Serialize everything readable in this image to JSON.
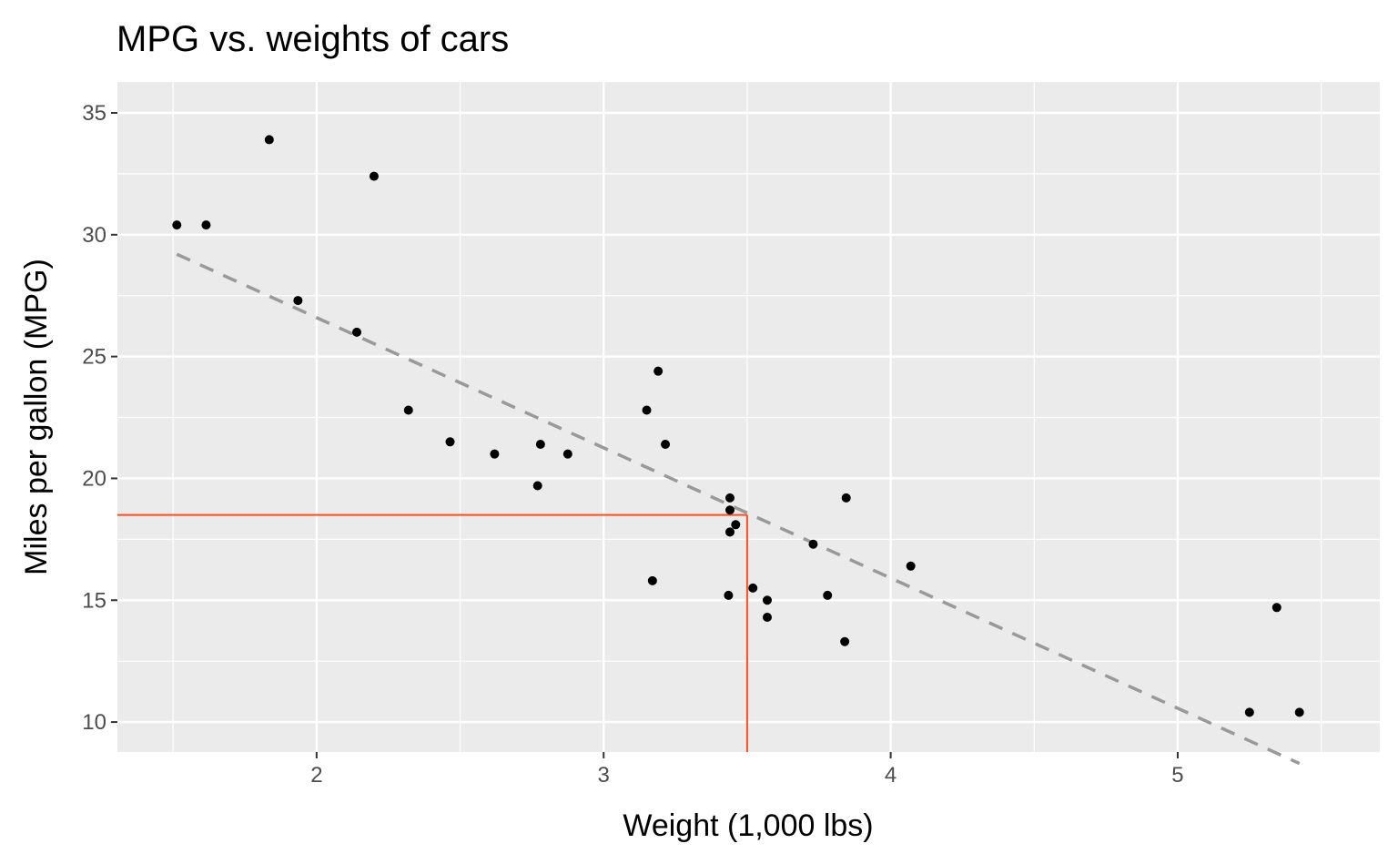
{
  "chart_data": {
    "type": "scatter",
    "title": "MPG vs. weights of cars",
    "xlabel": "Weight (1,000 lbs)",
    "ylabel": "Miles per gallon (MPG)",
    "xlim": [
      1.306,
      5.704
    ],
    "ylim": [
      8.77,
      36.27
    ],
    "x_ticks": [
      2,
      3,
      4,
      5
    ],
    "x_tick_labels": [
      "2",
      "3",
      "4",
      "5"
    ],
    "x_minor": [
      1.5,
      2.5,
      3.5,
      4.5,
      5.5
    ],
    "y_ticks": [
      10,
      15,
      20,
      25,
      30,
      35
    ],
    "y_tick_labels": [
      "10",
      "15",
      "20",
      "25",
      "30",
      "35"
    ],
    "y_minor": [
      12.5,
      17.5,
      22.5,
      27.5,
      32.5
    ],
    "grid": true,
    "legend": "none",
    "points": {
      "x": [
        2.62,
        2.875,
        2.32,
        3.215,
        3.44,
        3.46,
        3.57,
        3.19,
        3.15,
        3.44,
        3.44,
        4.07,
        3.73,
        3.78,
        5.25,
        5.424,
        5.345,
        2.2,
        1.615,
        1.835,
        2.465,
        3.52,
        3.435,
        3.84,
        3.845,
        1.935,
        2.14,
        1.513,
        3.17,
        2.77,
        3.57,
        2.78
      ],
      "y": [
        21.0,
        21.0,
        22.8,
        21.4,
        18.7,
        18.1,
        14.3,
        24.4,
        22.8,
        19.2,
        17.8,
        16.4,
        17.3,
        15.2,
        10.4,
        10.4,
        14.7,
        32.4,
        30.4,
        33.9,
        21.5,
        15.5,
        15.2,
        13.3,
        19.2,
        27.3,
        26.0,
        30.4,
        15.8,
        19.7,
        15.0,
        21.4
      ]
    },
    "fit_line": {
      "intercept": 37.285,
      "slope": -5.344,
      "x_range": [
        1.513,
        5.424
      ],
      "style": "dashed",
      "color": "#999999"
    },
    "highlight": {
      "x": 3.5,
      "y": 18.5,
      "color": "#FF4E1F"
    },
    "colors": {
      "panel": "#EBEBEB",
      "grid": "#FFFFFF",
      "point": "#000000"
    }
  }
}
